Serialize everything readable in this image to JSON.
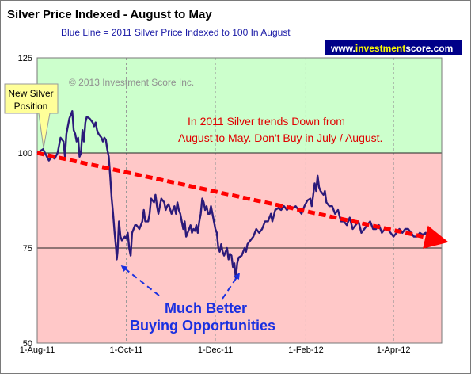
{
  "chart_data": {
    "type": "line",
    "title": "Silver Price Indexed - August to May",
    "subtitle": "Blue Line =  2011 Silver Price Indexed to 100 In August",
    "xlabel": "",
    "ylabel": "",
    "x_tick_labels": [
      "1-Aug-11",
      "1-Oct-11",
      "1-Dec-11",
      "1-Feb-12",
      "1-Apr-12"
    ],
    "x_tick_days": [
      0,
      61,
      122,
      184,
      244
    ],
    "xlim": [
      0,
      277
    ],
    "yticks": [
      50,
      75,
      100,
      125
    ],
    "ylim": [
      50,
      125
    ],
    "grid": false,
    "background_bands": [
      {
        "from": 100,
        "to": 125,
        "color": "#ccffcc"
      },
      {
        "from": 50,
        "to": 100,
        "color": "#ffc8c8"
      }
    ],
    "reference_lines": [
      100,
      75
    ],
    "series": [
      {
        "color": "#2b1a7a",
        "points": [
          [
            0,
            100
          ],
          [
            2,
            100.5
          ],
          [
            4,
            101
          ],
          [
            6,
            99.5
          ],
          [
            8,
            98
          ],
          [
            10,
            99
          ],
          [
            12,
            98.5
          ],
          [
            14,
            100
          ],
          [
            16,
            104
          ],
          [
            18,
            103
          ],
          [
            19,
            99
          ],
          [
            20,
            105
          ],
          [
            22,
            109
          ],
          [
            24,
            111
          ],
          [
            25,
            106
          ],
          [
            26,
            105
          ],
          [
            27,
            103
          ],
          [
            28,
            104
          ],
          [
            29,
            99
          ],
          [
            30,
            100
          ],
          [
            31,
            106
          ],
          [
            32,
            103
          ],
          [
            33,
            108
          ],
          [
            34,
            109.5
          ],
          [
            36,
            109
          ],
          [
            38,
            108
          ],
          [
            39,
            107
          ],
          [
            40,
            108
          ],
          [
            41,
            106
          ],
          [
            42,
            105
          ],
          [
            43,
            104.5
          ],
          [
            44,
            104
          ],
          [
            45,
            103
          ],
          [
            46,
            104
          ],
          [
            47,
            103.5
          ],
          [
            48,
            101
          ],
          [
            49,
            99
          ],
          [
            50,
            94
          ],
          [
            51,
            88
          ],
          [
            52,
            84
          ],
          [
            53,
            79
          ],
          [
            54,
            75
          ],
          [
            54.5,
            72
          ],
          [
            55,
            74
          ],
          [
            56,
            82
          ],
          [
            57,
            78
          ],
          [
            58,
            77
          ],
          [
            59,
            77.5
          ],
          [
            60,
            78
          ],
          [
            61,
            77.5
          ],
          [
            62,
            79
          ],
          [
            63,
            75
          ],
          [
            64,
            73
          ],
          [
            65,
            79
          ],
          [
            66,
            80
          ],
          [
            67,
            81
          ],
          [
            68,
            81
          ],
          [
            70,
            80
          ],
          [
            72,
            82
          ],
          [
            73,
            85
          ],
          [
            74,
            82
          ],
          [
            76,
            82
          ],
          [
            77,
            84
          ],
          [
            78,
            88
          ],
          [
            80,
            87
          ],
          [
            81,
            89
          ],
          [
            82,
            86
          ],
          [
            83,
            84
          ],
          [
            85,
            88
          ],
          [
            87,
            87
          ],
          [
            88,
            85
          ],
          [
            89,
            86
          ],
          [
            90,
            86.5
          ],
          [
            92,
            84
          ],
          [
            94,
            86
          ],
          [
            95,
            84
          ],
          [
            96,
            87
          ],
          [
            97,
            85
          ],
          [
            98,
            84
          ],
          [
            99,
            82
          ],
          [
            100,
            80
          ],
          [
            101,
            82
          ],
          [
            102,
            78
          ],
          [
            104,
            80
          ],
          [
            105,
            81
          ],
          [
            106,
            79
          ],
          [
            107,
            80
          ],
          [
            108,
            79.5
          ],
          [
            109,
            81
          ],
          [
            110,
            79
          ],
          [
            111,
            82
          ],
          [
            112,
            84
          ],
          [
            113,
            88
          ],
          [
            114,
            87
          ],
          [
            115,
            85
          ],
          [
            116,
            86
          ],
          [
            117,
            84
          ],
          [
            118,
            84
          ],
          [
            119,
            86
          ],
          [
            120,
            84
          ],
          [
            121,
            82
          ],
          [
            122,
            80
          ],
          [
            123,
            79
          ],
          [
            124,
            75
          ],
          [
            125,
            74
          ],
          [
            126,
            76
          ],
          [
            127,
            74
          ],
          [
            128,
            73
          ],
          [
            129,
            74
          ],
          [
            130,
            75
          ],
          [
            131,
            72
          ],
          [
            132,
            73.5
          ],
          [
            133,
            73
          ],
          [
            134,
            70
          ],
          [
            135,
            71
          ],
          [
            136,
            67
          ],
          [
            137,
            71
          ],
          [
            138,
            72.5
          ],
          [
            140,
            73
          ],
          [
            142,
            75
          ],
          [
            143,
            74
          ],
          [
            144,
            76
          ],
          [
            146,
            77
          ],
          [
            148,
            78
          ],
          [
            150,
            80
          ],
          [
            152,
            79
          ],
          [
            154,
            80
          ],
          [
            156,
            82
          ],
          [
            158,
            82
          ],
          [
            160,
            84
          ],
          [
            161,
            82
          ],
          [
            163,
            85
          ],
          [
            165,
            85.5
          ],
          [
            167,
            85
          ],
          [
            169,
            86
          ],
          [
            171,
            85
          ],
          [
            173,
            86
          ],
          [
            175,
            85.5
          ],
          [
            177,
            86
          ],
          [
            179,
            85
          ],
          [
            181,
            84
          ],
          [
            183,
            86
          ],
          [
            185,
            87.5
          ],
          [
            187,
            88
          ],
          [
            188,
            86
          ],
          [
            189,
            89
          ],
          [
            190,
            92
          ],
          [
            191,
            90
          ],
          [
            192,
            94
          ],
          [
            193,
            91
          ],
          [
            194,
            90
          ],
          [
            196,
            89
          ],
          [
            197,
            90
          ],
          [
            198,
            87
          ],
          [
            200,
            86
          ],
          [
            202,
            86
          ],
          [
            204,
            84
          ],
          [
            206,
            85
          ],
          [
            208,
            82
          ],
          [
            210,
            82
          ],
          [
            212,
            81
          ],
          [
            214,
            83
          ],
          [
            216,
            80
          ],
          [
            218,
            81
          ],
          [
            220,
            82
          ],
          [
            222,
            79
          ],
          [
            224,
            80
          ],
          [
            226,
            81
          ],
          [
            228,
            82
          ],
          [
            230,
            80
          ],
          [
            232,
            80
          ],
          [
            234,
            81
          ],
          [
            236,
            79
          ],
          [
            238,
            80
          ],
          [
            240,
            80
          ],
          [
            242,
            79
          ],
          [
            244,
            78
          ],
          [
            246,
            79
          ],
          [
            248,
            80
          ],
          [
            250,
            79
          ],
          [
            252,
            80
          ],
          [
            254,
            80
          ],
          [
            256,
            79
          ],
          [
            258,
            78
          ],
          [
            260,
            78
          ],
          [
            262,
            79
          ],
          [
            264,
            78.5
          ],
          [
            266,
            79
          ],
          [
            268,
            77.5
          ],
          [
            270,
            78.5
          ],
          [
            272,
            78
          ]
        ]
      }
    ],
    "trend_arrow": {
      "from": [
        0,
        100
      ],
      "to": [
        277,
        77
      ],
      "color": "#ff0000",
      "style": "dashed"
    },
    "annotations": {
      "copyright": "© 2013 Investment Score Inc.",
      "red_line_1": "In 2011 Silver trends Down from",
      "red_line_2": "August to May.  Don't Buy in July / August.",
      "blue_line_1": "Much Better",
      "blue_line_2": "Buying Opportunities",
      "callout_line_1": "New Silver",
      "callout_line_2": "Position",
      "callout_target": [
        0,
        100
      ],
      "blue_arrow_targets": [
        [
          56,
          71
        ],
        [
          136,
          69
        ]
      ]
    },
    "brand": {
      "pre": "www.",
      "highlight": "investment",
      "post": "score.com"
    }
  }
}
